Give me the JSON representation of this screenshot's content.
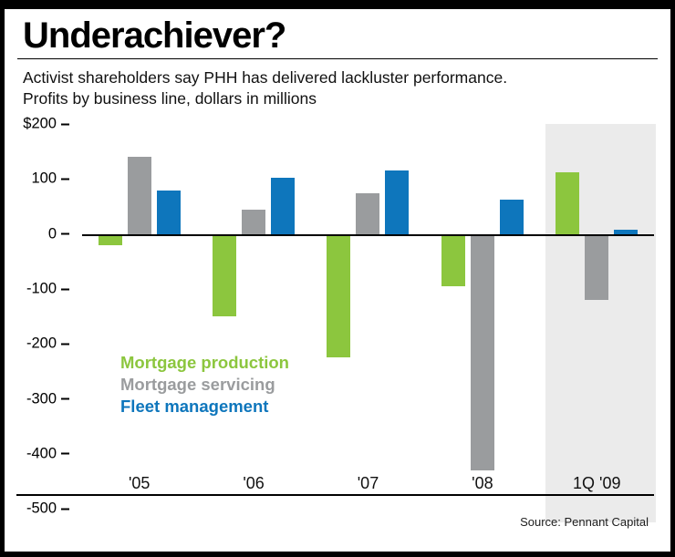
{
  "header": {
    "title": "Underachiever?",
    "subtitle1": "Activist shareholders say PHH has delivered lackluster performance.",
    "subtitle2": "Profits by business line, dollars in millions"
  },
  "source": "Source: Pennant Capital",
  "chart_data": {
    "type": "bar",
    "title": "Underachiever?",
    "subtitle": "Profits by business line, dollars in millions",
    "categories": [
      "'05",
      "'06",
      "'07",
      "'08",
      "1Q '09"
    ],
    "series": [
      {
        "name": "Mortgage production",
        "color": "#8cc63e",
        "values": [
          -20,
          -150,
          -225,
          -95,
          112
        ]
      },
      {
        "name": "Mortgage servicing",
        "color": "#9a9c9e",
        "values": [
          140,
          45,
          75,
          -430,
          -120
        ]
      },
      {
        "name": "Fleet management",
        "color": "#0e76bc",
        "values": [
          80,
          102,
          115,
          62,
          8
        ]
      }
    ],
    "ylim": [
      -500,
      200
    ],
    "yticks": [
      "$200",
      "100",
      "0",
      "-100",
      "-200",
      "-300",
      "-400",
      "-500"
    ],
    "ytick_values": [
      200,
      100,
      0,
      -100,
      -200,
      -300,
      -400,
      -500
    ],
    "grid": false,
    "legend_position": "inside-left",
    "highlight_category": "1Q '09",
    "highlight_color": "#ebebeb"
  }
}
